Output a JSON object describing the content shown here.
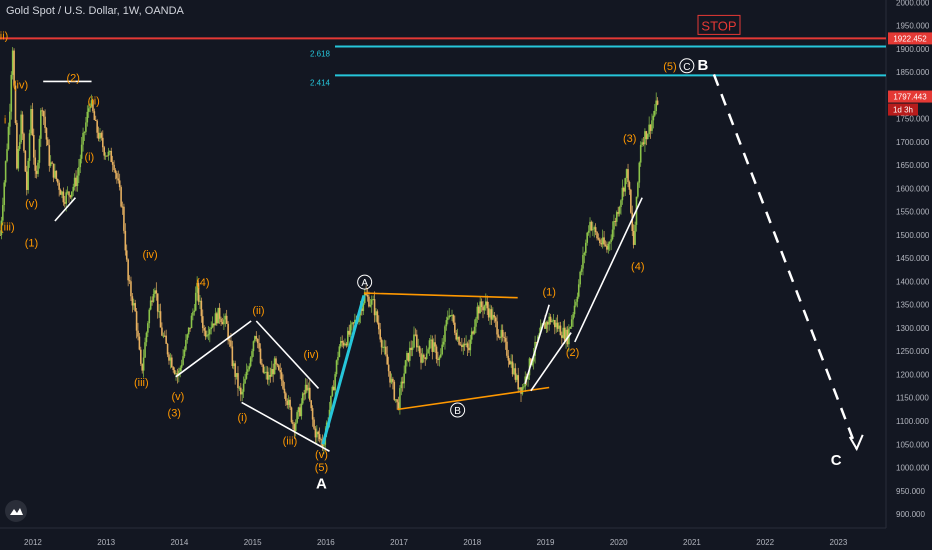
{
  "header": {
    "title": "Gold Spot / U.S. Dollar, 1W, OANDA"
  },
  "colors": {
    "background": "#131722",
    "up": "#8bc34a",
    "down": "#e6b060",
    "stop_line": "#e53935",
    "fib_line": "#26c6da",
    "wave_orange": "#ff9800",
    "white": "#ffffff",
    "axis_text": "#b2b5be"
  },
  "logo": {
    "icon": "tradingview-mountain-icon"
  },
  "chart_data": {
    "type": "candlestick",
    "ylim": [
      870,
      2005
    ],
    "y_ticks": [
      2000,
      1950,
      1900,
      1850,
      1800,
      1750,
      1700,
      1650,
      1600,
      1550,
      1500,
      1450,
      1400,
      1350,
      1300,
      1250,
      1200,
      1150,
      1100,
      1050,
      1000,
      950,
      900
    ],
    "y_tick_labels": [
      "2000.000",
      "1950.000",
      "1900.000",
      "1850.000",
      "1800.000",
      "1750.000",
      "1700.000",
      "1650.000",
      "1600.000",
      "1550.000",
      "1500.000",
      "1450.000",
      "1400.000",
      "1350.000",
      "1300.000",
      "1250.000",
      "1200.000",
      "1150.000",
      "1100.000",
      "1050.000",
      "1000.000",
      "950.000",
      "900.000"
    ],
    "x_range": [
      2011.55,
      2023.65
    ],
    "x_ticks": [
      "2012",
      "2013",
      "2014",
      "2015",
      "2016",
      "2017",
      "2018",
      "2019",
      "2020",
      "2021",
      "2022",
      "2023"
    ],
    "price_path": [
      [
        2011.55,
        1500
      ],
      [
        2011.68,
        1760
      ],
      [
        2011.72,
        1920
      ],
      [
        2011.78,
        1640
      ],
      [
        2011.84,
        1750
      ],
      [
        2011.92,
        1590
      ],
      [
        2011.97,
        1780
      ],
      [
        2012.04,
        1600
      ],
      [
        2012.12,
        1790
      ],
      [
        2012.22,
        1660
      ],
      [
        2012.32,
        1620
      ],
      [
        2012.42,
        1580
      ],
      [
        2012.5,
        1590
      ],
      [
        2012.6,
        1620
      ],
      [
        2012.7,
        1720
      ],
      [
        2012.78,
        1790
      ],
      [
        2012.86,
        1730
      ],
      [
        2012.98,
        1680
      ],
      [
        2013.1,
        1660
      ],
      [
        2013.22,
        1560
      ],
      [
        2013.3,
        1400
      ],
      [
        2013.4,
        1330
      ],
      [
        2013.48,
        1200
      ],
      [
        2013.58,
        1330
      ],
      [
        2013.66,
        1400
      ],
      [
        2013.74,
        1300
      ],
      [
        2013.84,
        1250
      ],
      [
        2013.98,
        1195
      ],
      [
        2014.08,
        1260
      ],
      [
        2014.18,
        1330
      ],
      [
        2014.24,
        1385
      ],
      [
        2014.34,
        1290
      ],
      [
        2014.44,
        1310
      ],
      [
        2014.54,
        1330
      ],
      [
        2014.64,
        1310
      ],
      [
        2014.72,
        1230
      ],
      [
        2014.84,
        1150
      ],
      [
        2014.92,
        1200
      ],
      [
        2015.04,
        1300
      ],
      [
        2015.12,
        1210
      ],
      [
        2015.22,
        1190
      ],
      [
        2015.3,
        1220
      ],
      [
        2015.42,
        1180
      ],
      [
        2015.56,
        1090
      ],
      [
        2015.64,
        1120
      ],
      [
        2015.74,
        1180
      ],
      [
        2015.84,
        1080
      ],
      [
        2015.96,
        1050
      ],
      [
        2016.08,
        1150
      ],
      [
        2016.18,
        1260
      ],
      [
        2016.3,
        1280
      ],
      [
        2016.45,
        1330
      ],
      [
        2016.53,
        1370
      ],
      [
        2016.65,
        1350
      ],
      [
        2016.78,
        1260
      ],
      [
        2016.9,
        1180
      ],
      [
        2016.98,
        1130
      ],
      [
        2017.1,
        1230
      ],
      [
        2017.22,
        1280
      ],
      [
        2017.32,
        1230
      ],
      [
        2017.42,
        1270
      ],
      [
        2017.56,
        1230
      ],
      [
        2017.68,
        1340
      ],
      [
        2017.8,
        1280
      ],
      [
        2017.95,
        1250
      ],
      [
        2018.06,
        1340
      ],
      [
        2018.18,
        1350
      ],
      [
        2018.28,
        1320
      ],
      [
        2018.4,
        1280
      ],
      [
        2018.52,
        1230
      ],
      [
        2018.62,
        1180
      ],
      [
        2018.68,
        1170
      ],
      [
        2018.8,
        1230
      ],
      [
        2018.96,
        1300
      ],
      [
        2019.06,
        1320
      ],
      [
        2019.18,
        1300
      ],
      [
        2019.3,
        1280
      ],
      [
        2019.45,
        1390
      ],
      [
        2019.6,
        1530
      ],
      [
        2019.72,
        1490
      ],
      [
        2019.84,
        1470
      ],
      [
        2019.98,
        1550
      ],
      [
        2020.12,
        1640
      ],
      [
        2020.2,
        1470
      ],
      [
        2020.3,
        1700
      ],
      [
        2020.42,
        1730
      ],
      [
        2020.52,
        1780
      ],
      [
        2020.54,
        1797
      ]
    ],
    "horizontal_levels": [
      {
        "value": 1922.452,
        "role": "stop"
      },
      {
        "value": 1905,
        "label": "2.618"
      },
      {
        "value": 1843,
        "label": "2.414"
      }
    ],
    "price_badges": [
      {
        "value": 1922.452,
        "text": "1922.452"
      },
      {
        "value": 1797.443,
        "text": "1797.443"
      }
    ],
    "countdown_badge": "1d 3h",
    "stop_label": "STOP",
    "projection": [
      [
        2021.3,
        1845
      ],
      [
        2023.25,
        1040
      ]
    ],
    "wave_labels": [
      {
        "t": "(ii)",
        "x": 2011.58,
        "y": 1920,
        "c": "orange"
      },
      {
        "t": "(iv)",
        "x": 2011.83,
        "y": 1815,
        "c": "orange"
      },
      {
        "t": "i",
        "x": 2011.62,
        "y": 1740,
        "c": "orange"
      },
      {
        "t": "(iii)",
        "x": 2011.65,
        "y": 1510,
        "c": "orange"
      },
      {
        "t": "(v)",
        "x": 2011.98,
        "y": 1560,
        "c": "orange"
      },
      {
        "t": "(1)",
        "x": 2011.98,
        "y": 1475,
        "c": "orange"
      },
      {
        "t": "(2)",
        "x": 2012.55,
        "y": 1830,
        "c": "orange"
      },
      {
        "t": "(ii)",
        "x": 2012.83,
        "y": 1780,
        "c": "orange"
      },
      {
        "t": "(i)",
        "x": 2012.77,
        "y": 1660,
        "c": "orange"
      },
      {
        "t": "(iv)",
        "x": 2013.6,
        "y": 1450,
        "c": "orange"
      },
      {
        "t": "(iii)",
        "x": 2013.48,
        "y": 1175,
        "c": "orange"
      },
      {
        "t": "(v)",
        "x": 2013.98,
        "y": 1145,
        "c": "orange"
      },
      {
        "t": "(3)",
        "x": 2013.93,
        "y": 1110,
        "c": "orange"
      },
      {
        "t": "(4)",
        "x": 2014.32,
        "y": 1390,
        "c": "orange"
      },
      {
        "t": "(ii)",
        "x": 2015.08,
        "y": 1330,
        "c": "orange"
      },
      {
        "t": "(i)",
        "x": 2014.86,
        "y": 1100,
        "c": "orange"
      },
      {
        "t": "(iv)",
        "x": 2015.8,
        "y": 1235,
        "c": "orange"
      },
      {
        "t": "(iii)",
        "x": 2015.51,
        "y": 1050,
        "c": "orange"
      },
      {
        "t": "(v)",
        "x": 2015.94,
        "y": 1020,
        "c": "orange"
      },
      {
        "t": "(5)",
        "x": 2015.94,
        "y": 993,
        "c": "orange"
      },
      {
        "t": "A",
        "x": 2015.94,
        "y": 955,
        "c": "white",
        "big": true
      },
      {
        "t": "A",
        "x": 2016.53,
        "y": 1390,
        "c": "white",
        "circled": true
      },
      {
        "t": "B",
        "x": 2017.8,
        "y": 1115,
        "c": "white",
        "circled": true
      },
      {
        "t": "(1)",
        "x": 2019.05,
        "y": 1370,
        "c": "orange"
      },
      {
        "t": "(2)",
        "x": 2019.37,
        "y": 1240,
        "c": "orange"
      },
      {
        "t": "(3)",
        "x": 2020.15,
        "y": 1700,
        "c": "orange"
      },
      {
        "t": "(4)",
        "x": 2020.26,
        "y": 1425,
        "c": "orange"
      },
      {
        "t": "(5)",
        "x": 2020.7,
        "y": 1855,
        "c": "orange"
      },
      {
        "t": "C",
        "x": 2020.93,
        "y": 1855,
        "c": "white",
        "circled": true
      },
      {
        "t": "B",
        "x": 2021.15,
        "y": 1855,
        "c": "white",
        "big": true
      },
      {
        "t": "C",
        "x": 2022.97,
        "y": 1005,
        "c": "white",
        "big": true
      }
    ],
    "trendlines": [
      {
        "c": "white",
        "p": [
          [
            2012.14,
            1830
          ],
          [
            2012.8,
            1830
          ]
        ]
      },
      {
        "c": "white",
        "p": [
          [
            2012.3,
            1530
          ],
          [
            2012.58,
            1580
          ]
        ]
      },
      {
        "c": "white",
        "p": [
          [
            2013.95,
            1195
          ],
          [
            2014.98,
            1315
          ]
        ]
      },
      {
        "c": "white",
        "p": [
          [
            2015.05,
            1315
          ],
          [
            2015.9,
            1170
          ]
        ]
      },
      {
        "c": "white",
        "p": [
          [
            2014.85,
            1140
          ],
          [
            2016.05,
            1035
          ]
        ]
      },
      {
        "c": "cyan",
        "p": [
          [
            2015.96,
            1050
          ],
          [
            2016.52,
            1370
          ]
        ]
      },
      {
        "c": "orange",
        "p": [
          [
            2016.52,
            1375
          ],
          [
            2018.62,
            1365
          ]
        ]
      },
      {
        "c": "orange",
        "p": [
          [
            2016.98,
            1125
          ],
          [
            2019.05,
            1172
          ]
        ]
      },
      {
        "c": "white",
        "p": [
          [
            2018.72,
            1180
          ],
          [
            2019.05,
            1350
          ]
        ]
      },
      {
        "c": "white",
        "p": [
          [
            2018.8,
            1165
          ],
          [
            2019.35,
            1290
          ]
        ]
      },
      {
        "c": "white",
        "p": [
          [
            2019.4,
            1270
          ],
          [
            2020.32,
            1580
          ]
        ]
      }
    ]
  }
}
